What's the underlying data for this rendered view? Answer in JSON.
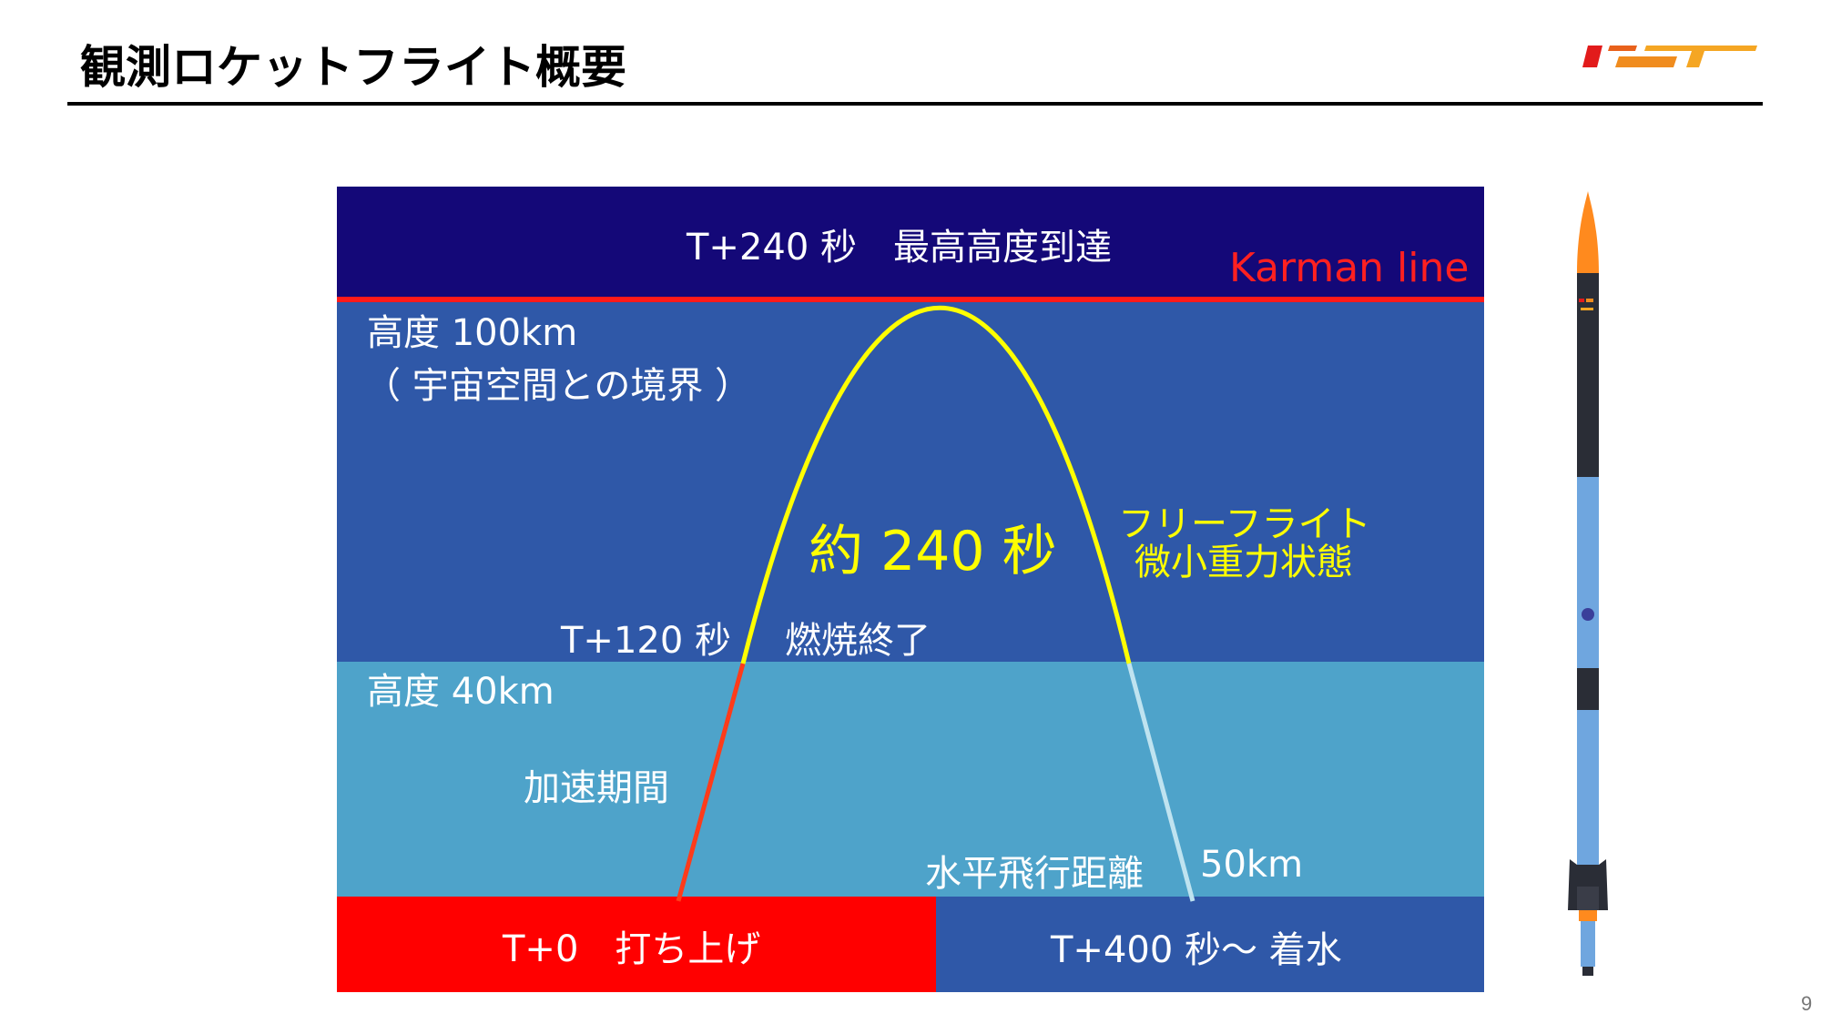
{
  "header": {
    "title": "観測ロケットフライト概要",
    "page_number": "9"
  },
  "diagram": {
    "karman_line": "Karman line",
    "apogee": "T+240 秒　最高高度到達",
    "altitude_100km": "高度 100km",
    "space_boundary": "（ 宇宙空間との境界 ）",
    "flight_duration": "約 240 秒",
    "free_flight_line1": "フリーフライト",
    "free_flight_line2": "微小重力状態",
    "burnout_time": "T+120 秒",
    "burnout": "燃焼終了",
    "altitude_40km": "高度 40km",
    "acceleration": "加速期間",
    "horizontal_label": "水平飛行距離",
    "horizontal_distance": "50km",
    "launch": "T+0　打ち上げ",
    "splashdown": "T+400 秒〜 着水"
  },
  "colors": {
    "space": "#140878",
    "upper_atmosphere": "#2f58a8",
    "lower_atmosphere": "#4ea3ca",
    "karman": "#ff1a1a",
    "launch_box": "#ff0000",
    "splash_box": "#2f58a8",
    "trajectory_coast": "#ffff00",
    "trajectory_boost": "#ff3b1a",
    "trajectory_descent": "#bfe3f0",
    "rocket_nose": "#ff8a1e",
    "rocket_body_dark": "#2a2d36",
    "rocket_body_light": "#6fa6df"
  },
  "icons": {
    "logo": "ist-logo",
    "rocket": "rocket-illustration"
  }
}
